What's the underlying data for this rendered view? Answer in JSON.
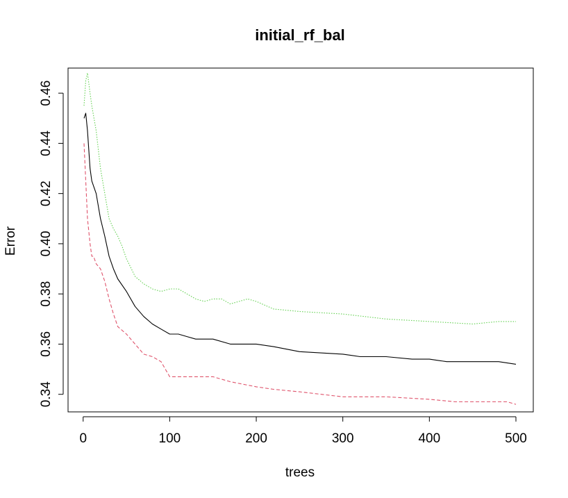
{
  "chart_data": {
    "type": "line",
    "title": "initial_rf_bal",
    "xlabel": "trees",
    "ylabel": "Error",
    "xlim": [
      1,
      500
    ],
    "ylim": [
      0.333,
      0.47
    ],
    "xticks": [
      0,
      100,
      200,
      300,
      400,
      500
    ],
    "yticks": [
      0.34,
      0.36,
      0.38,
      0.4,
      0.42,
      0.44,
      0.46
    ],
    "ytick_labels": [
      "0.34",
      "0.36",
      "0.38",
      "0.40",
      "0.42",
      "0.44",
      "0.46"
    ],
    "grid": false,
    "legend": "none",
    "series": [
      {
        "key": "oob",
        "color": "#000000",
        "dash": "solid",
        "x": [
          1,
          3,
          5,
          8,
          10,
          15,
          20,
          25,
          30,
          35,
          40,
          50,
          60,
          70,
          80,
          90,
          100,
          110,
          120,
          130,
          150,
          170,
          180,
          200,
          220,
          250,
          300,
          320,
          350,
          380,
          400,
          420,
          450,
          480,
          500
        ],
        "y": [
          0.45,
          0.452,
          0.445,
          0.43,
          0.425,
          0.42,
          0.41,
          0.403,
          0.395,
          0.39,
          0.386,
          0.381,
          0.375,
          0.371,
          0.368,
          0.366,
          0.364,
          0.364,
          0.363,
          0.362,
          0.362,
          0.36,
          0.36,
          0.36,
          0.359,
          0.357,
          0.356,
          0.355,
          0.355,
          0.354,
          0.354,
          0.353,
          0.353,
          0.353,
          0.352
        ]
      },
      {
        "key": "class1",
        "color": "#DF536B",
        "dash": "dashed",
        "x": [
          1,
          3,
          5,
          8,
          10,
          12,
          15,
          20,
          25,
          30,
          35,
          40,
          50,
          60,
          70,
          80,
          90,
          95,
          100,
          110,
          120,
          130,
          150,
          170,
          200,
          220,
          250,
          300,
          350,
          400,
          430,
          460,
          490,
          500
        ],
        "y": [
          0.44,
          0.425,
          0.41,
          0.4,
          0.395,
          0.395,
          0.392,
          0.39,
          0.385,
          0.378,
          0.372,
          0.367,
          0.364,
          0.36,
          0.356,
          0.355,
          0.353,
          0.35,
          0.347,
          0.347,
          0.347,
          0.347,
          0.347,
          0.345,
          0.343,
          0.342,
          0.341,
          0.339,
          0.339,
          0.338,
          0.337,
          0.337,
          0.337,
          0.336
        ]
      },
      {
        "key": "class2",
        "color": "#61D04F",
        "dash": "dotted",
        "x": [
          1,
          3,
          5,
          8,
          10,
          15,
          20,
          25,
          30,
          35,
          40,
          45,
          50,
          60,
          70,
          80,
          90,
          100,
          110,
          120,
          130,
          140,
          150,
          160,
          165,
          170,
          180,
          190,
          200,
          220,
          250,
          300,
          350,
          400,
          450,
          480,
          500
        ],
        "y": [
          0.455,
          0.465,
          0.468,
          0.46,
          0.455,
          0.445,
          0.43,
          0.42,
          0.41,
          0.406,
          0.403,
          0.399,
          0.394,
          0.387,
          0.384,
          0.382,
          0.381,
          0.382,
          0.382,
          0.38,
          0.378,
          0.377,
          0.378,
          0.378,
          0.377,
          0.376,
          0.377,
          0.378,
          0.377,
          0.374,
          0.373,
          0.372,
          0.37,
          0.369,
          0.368,
          0.369,
          0.369
        ]
      }
    ]
  }
}
